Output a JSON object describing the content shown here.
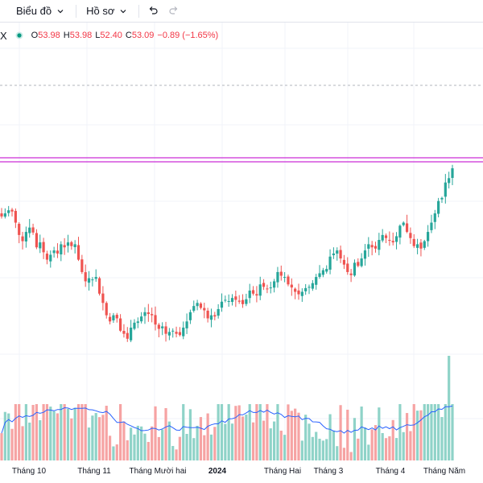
{
  "toolbar": {
    "chart_label": "Biểu đồ",
    "profile_label": "Hồ sơ"
  },
  "legend": {
    "symbol": "X",
    "open_key": "O",
    "open_val": "53.98",
    "high_key": "H",
    "high_val": "53.98",
    "low_key": "L",
    "low_val": "52.40",
    "close_key": "C",
    "close_val": "53.09",
    "change": "−0.89 (−1.65%)"
  },
  "colors": {
    "up": "#26a69a",
    "down": "#ef5350",
    "vol_up": "#8fd3c8",
    "vol_down": "#f6a3a3",
    "ma": "#2962ff",
    "level_line": "#cc2fd8",
    "grid": "#f0f3fa"
  },
  "icons": [
    "chevron-down-icon",
    "undo-icon",
    "redo-icon",
    "status-dot-icon"
  ],
  "chart_data": {
    "type": "candlestick",
    "x_labels": [
      "Tháng 10",
      "Tháng 11",
      "Tháng Mười hai",
      "2024",
      "Tháng Hai",
      "Tháng 3",
      "Tháng 4",
      "Tháng Năm"
    ],
    "x_label_bold": [
      false,
      false,
      false,
      true,
      false,
      false,
      false,
      false
    ],
    "closes": [
      60,
      60.5,
      61,
      60.8,
      59,
      57,
      56,
      57.5,
      58.2,
      57.4,
      55,
      55.8,
      54.2,
      53,
      53.8,
      54.5,
      54,
      55.5,
      55,
      55.8,
      55.2,
      55.5,
      53,
      51,
      49.5,
      50,
      49.8,
      50.2,
      47.5,
      46,
      44,
      43,
      44,
      43.5,
      41.5,
      41,
      40.2,
      42,
      42.8,
      43,
      43.8,
      44.5,
      44.2,
      44,
      42.5,
      41.8,
      42.2,
      41,
      41.3,
      41.5,
      41,
      40.8,
      42,
      43,
      44.5,
      45.5,
      46,
      45.2,
      44.8,
      43.5,
      44,
      43.8,
      45,
      46.2,
      46.5,
      46.3,
      46.8,
      46.5,
      46.2,
      45.8,
      46.6,
      48,
      47.5,
      47.2,
      49,
      48.6,
      48.2,
      48.5,
      49.5,
      51,
      50.4,
      50.2,
      49,
      48.5,
      47.8,
      47.4,
      47.8,
      48.4,
      48.6,
      49.2,
      50.2,
      50.8,
      51.3,
      51.5,
      53.5,
      54,
      54.5,
      53.2,
      52.2,
      51,
      50.5,
      52.5,
      52,
      53.2,
      54.5,
      55.5,
      55,
      54.8,
      56.2,
      57,
      56.5,
      56.2,
      55.8,
      56.8,
      58.5,
      59,
      57.5,
      56.5,
      55.2,
      55.5,
      54.8,
      56,
      57.5,
      59,
      60.5,
      62.5,
      63,
      65.5,
      66.2,
      67.8
    ]
  }
}
